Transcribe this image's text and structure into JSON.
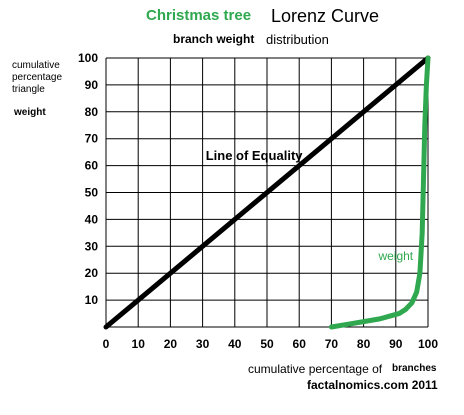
{
  "title": {
    "part1": "Christmas tree",
    "part2": "Lorenz Curve"
  },
  "subtitle": {
    "part1": "branch weight",
    "part2": "distribution"
  },
  "ylabel": {
    "line1": "cumulative",
    "line2": "percentage",
    "line3": "triangle",
    "line4": "weight"
  },
  "xlabel": {
    "part1": "cumulative percentage of",
    "part2": "branches"
  },
  "credit": "factalnomics.com 2011",
  "colors": {
    "green": "#2fa84f",
    "black": "#000000",
    "grid": "#000000"
  },
  "chart_data": {
    "type": "line",
    "xlim": [
      0,
      100
    ],
    "ylim": [
      0,
      100
    ],
    "xticks": [
      0,
      10,
      20,
      30,
      40,
      50,
      60,
      70,
      80,
      90,
      100
    ],
    "yticks": [
      10,
      20,
      30,
      40,
      50,
      60,
      70,
      80,
      90,
      100
    ],
    "grid": true,
    "annotations": [
      {
        "text": "Line of Equality",
        "x": 46,
        "y": 62
      },
      {
        "text": "weight",
        "x": 90,
        "y": 25
      }
    ],
    "series": [
      {
        "name": "Line of Equality",
        "color": "#000000",
        "x": [
          0,
          100
        ],
        "y": [
          0,
          100
        ]
      },
      {
        "name": "weight",
        "color": "#2fa84f",
        "x": [
          70,
          75,
          80,
          85,
          88,
          91,
          93,
          95,
          96.5,
          97.5,
          98.2,
          98.6,
          99,
          99.5,
          100
        ],
        "y": [
          0,
          1,
          2,
          3,
          4,
          5,
          6.5,
          9,
          13,
          20,
          35,
          55,
          75,
          90,
          100
        ]
      }
    ]
  }
}
